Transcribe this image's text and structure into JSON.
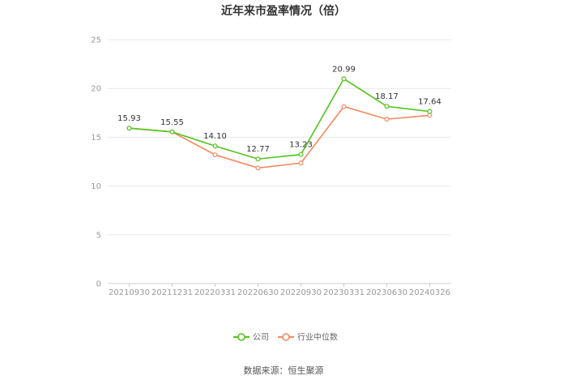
{
  "chart_data": {
    "type": "line",
    "title": "近年来市盈率情况（倍）",
    "categories": [
      "20210930",
      "20211231",
      "20220331",
      "20220630",
      "20220930",
      "20230331",
      "20230630",
      "20240326"
    ],
    "series": [
      {
        "name": "公司",
        "color": "#52c41a",
        "values": [
          15.93,
          15.55,
          14.1,
          12.77,
          13.23,
          20.99,
          18.17,
          17.64
        ],
        "labels": [
          "15.93",
          "15.55",
          "14.10",
          "12.77",
          "13.23",
          "20.99",
          "18.17",
          "17.64"
        ]
      },
      {
        "name": "行业中位数",
        "color": "#f4895f",
        "values": [
          15.93,
          15.55,
          13.2,
          11.85,
          12.35,
          18.15,
          16.85,
          17.25
        ]
      }
    ],
    "ylim": [
      0,
      25
    ],
    "yticks": [
      "0",
      "5",
      "10",
      "15",
      "20",
      "25"
    ],
    "grid": true,
    "legend_position": "bottom"
  },
  "source": "数据来源：恒生聚源"
}
